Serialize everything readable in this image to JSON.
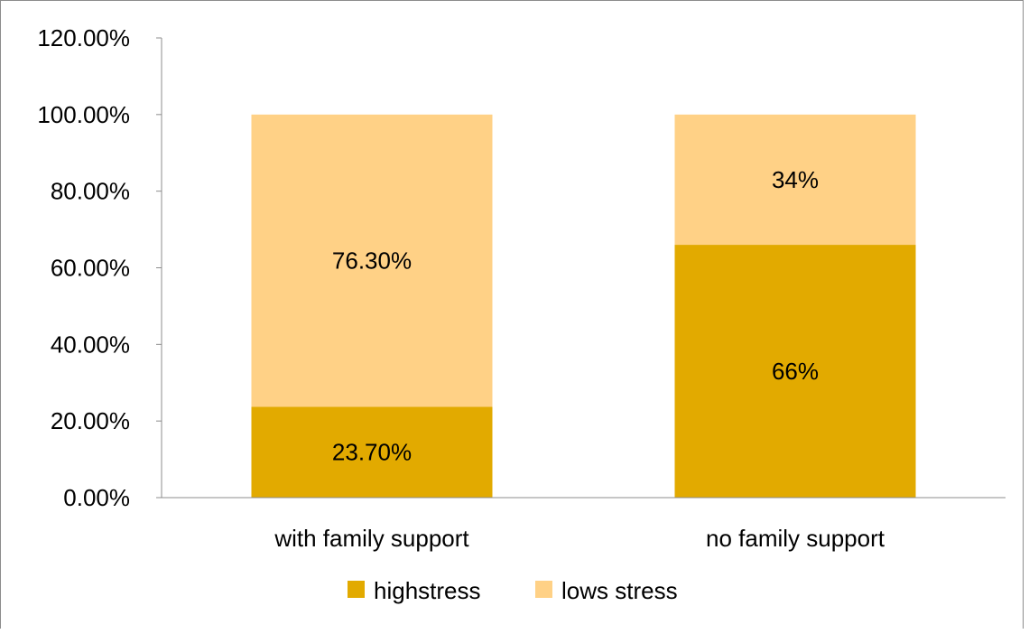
{
  "chart_data": {
    "type": "bar",
    "stacked": true,
    "categories": [
      "with family support",
      "no family support"
    ],
    "series": [
      {
        "name": "highstress",
        "values": [
          23.7,
          66
        ],
        "labels": [
          "23.70%",
          "66%"
        ],
        "color": "#E2AA00"
      },
      {
        "name": "lows stress",
        "values": [
          76.3,
          34
        ],
        "labels": [
          "76.30%",
          "34%"
        ],
        "color": "#FFD186"
      }
    ],
    "ylim": [
      0,
      120
    ],
    "yticks": [
      0,
      20,
      40,
      60,
      80,
      100,
      120
    ],
    "ytick_labels": [
      "0.00%",
      "20.00%",
      "40.00%",
      "60.00%",
      "80.00%",
      "100.00%",
      "120.00%"
    ],
    "title": "",
    "xlabel": "",
    "ylabel": "",
    "grid": false,
    "legend_position": "bottom",
    "axis_color": "#8c8c8c"
  }
}
